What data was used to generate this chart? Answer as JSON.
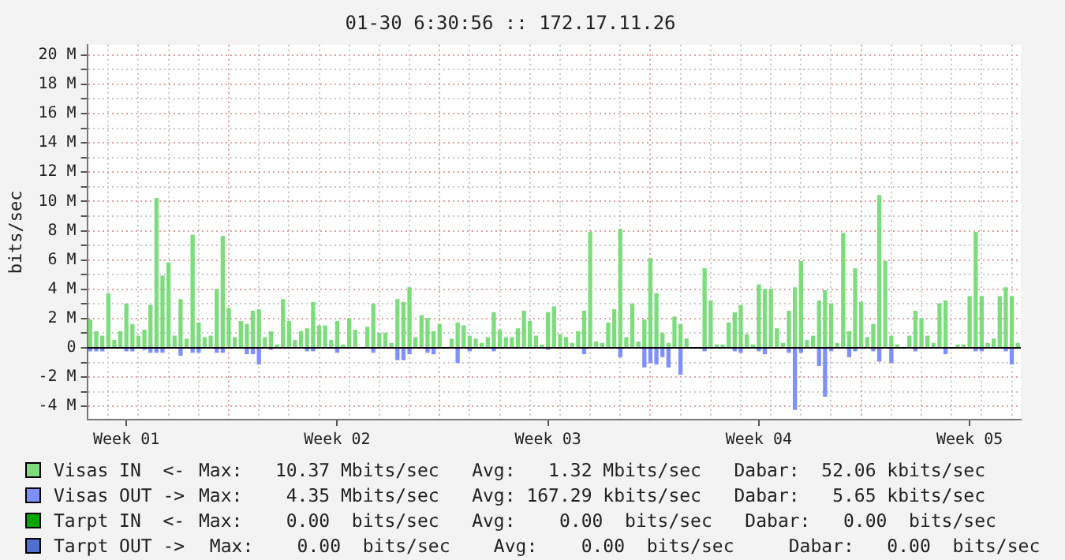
{
  "chart_data": {
    "type": "bar",
    "title": "01-30 6:30:56 :: 172.17.11.26",
    "ylabel": "bits/sec",
    "categories": [
      null,
      null,
      null,
      null,
      null,
      null,
      "Week 01",
      null,
      null,
      null,
      null,
      null,
      null,
      null,
      null,
      null,
      null,
      null,
      null,
      null,
      null,
      null,
      null,
      null,
      null,
      null,
      null,
      null,
      null,
      null,
      null,
      null,
      null,
      null,
      null,
      null,
      null,
      null,
      null,
      null,
      null,
      "Week 02",
      null,
      null,
      null,
      null,
      null,
      null,
      null,
      null,
      null,
      null,
      null,
      null,
      null,
      null,
      null,
      null,
      null,
      null,
      null,
      null,
      null,
      null,
      null,
      null,
      null,
      null,
      null,
      null,
      null,
      null,
      null,
      null,
      null,
      null,
      "Week 03",
      null,
      null,
      null,
      null,
      null,
      null,
      null,
      null,
      null,
      null,
      null,
      null,
      null,
      null,
      null,
      null,
      null,
      null,
      null,
      null,
      null,
      null,
      null,
      null,
      null,
      null,
      null,
      null,
      null,
      null,
      null,
      null,
      null,
      null,
      "Week 04",
      null,
      null,
      null,
      null,
      null,
      null,
      null,
      null,
      null,
      null,
      null,
      null,
      null,
      null,
      null,
      null,
      null,
      null,
      null,
      null,
      null,
      null,
      null,
      null,
      null,
      null,
      null,
      null,
      null,
      null,
      null,
      null,
      null,
      null,
      "Week 05",
      null,
      null,
      null,
      null,
      null,
      null,
      null,
      null
    ],
    "ylim": [
      -4.9,
      20.7
    ],
    "yticks": [
      {
        "value": -4,
        "label": "-4 M"
      },
      {
        "value": -3,
        "label": null
      },
      {
        "value": -2,
        "label": "-2 M"
      },
      {
        "value": -1,
        "label": null
      },
      0,
      {
        "value": 1,
        "label": null
      },
      {
        "value": 2,
        "label": "2 M"
      },
      {
        "value": 3,
        "label": null
      },
      {
        "value": 4,
        "label": "4 M"
      },
      {
        "value": 5,
        "label": null
      },
      {
        "value": 6,
        "label": "6 M"
      },
      {
        "value": 7,
        "label": null
      },
      {
        "value": 8,
        "label": "8 M"
      },
      {
        "value": 9,
        "label": null
      },
      {
        "value": 10,
        "label": "10 M"
      },
      {
        "value": 11,
        "label": null
      },
      {
        "value": 12,
        "label": "12 M"
      },
      {
        "value": 13,
        "label": null
      },
      {
        "value": 14,
        "label": "14 M"
      },
      {
        "value": 15,
        "label": null
      },
      {
        "value": 16,
        "label": "16 M"
      },
      {
        "value": 17,
        "label": null
      },
      {
        "value": 18,
        "label": "18 M"
      },
      {
        "value": 19,
        "label": null
      },
      {
        "value": 20,
        "label": "20 M"
      }
    ],
    "grid": true,
    "legend": "bottom",
    "ref_lines": [
      {
        "axis": "y",
        "value": 0,
        "color": "#000000"
      }
    ],
    "annotations": [
      "Max:   10.37 Mbits/sec   Avg:   1.32 Mbits/sec   Dabar:  52.06 kbits/sec",
      "Max:    4.35 Mbits/sec   Avg: 167.29 kbits/sec   Dabar:   5.65 kbits/sec",
      "Max:    0.00  bits/sec   Avg:    0.00  bits/sec   Dabar:   0.00  bits/sec",
      " Max:    0.00  bits/sec    Avg:    0.00  bits/sec     Dabar:   0.00  bits/sec"
    ],
    "series": [
      {
        "name": "Visas IN  <-",
        "color": "#7ddd7d",
        "values": [
          1.9,
          1.1,
          0.8,
          3.7,
          0.5,
          1.1,
          3.0,
          1.6,
          0.8,
          1.2,
          2.9,
          10.2,
          4.9,
          5.8,
          0.8,
          3.3,
          0.6,
          7.7,
          1.7,
          0.7,
          0.8,
          4.0,
          7.6,
          2.7,
          0.7,
          1.8,
          1.6,
          2.5,
          2.6,
          0.7,
          1.1,
          0.2,
          3.3,
          1.8,
          0.5,
          1.1,
          1.3,
          3.1,
          1.5,
          1.5,
          0.5,
          1.8,
          0.2,
          2.0,
          1.2,
          null,
          1.4,
          3.0,
          1.0,
          1.0,
          0.3,
          3.3,
          3.1,
          4.1,
          0.7,
          2.2,
          2.0,
          1.1,
          1.6,
          null,
          0.6,
          1.7,
          1.5,
          0.8,
          0.6,
          0.3,
          0.7,
          2.4,
          1.2,
          0.7,
          0.7,
          1.3,
          2.5,
          1.8,
          0.8,
          0.2,
          2.4,
          2.8,
          0.9,
          0.7,
          0.3,
          1.1,
          2.5,
          7.9,
          0.4,
          0.3,
          1.7,
          2.6,
          8.1,
          0.7,
          3.0,
          0.4,
          1.9,
          6.1,
          3.7,
          1.0,
          0.3,
          2.1,
          1.6,
          0.6,
          null,
          null,
          5.4,
          3.2,
          0.2,
          0.2,
          1.7,
          2.4,
          2.9,
          0.9,
          0.2,
          4.3,
          4.0,
          4.0,
          1.3,
          0.3,
          2.5,
          4.1,
          5.9,
          0.5,
          0.8,
          3.2,
          3.9,
          3.0,
          0.3,
          7.8,
          1.1,
          5.4,
          3.1,
          0.7,
          1.6,
          10.4,
          5.9,
          0.8,
          0.2,
          null,
          0.8,
          2.5,
          2.0,
          0.8,
          0.3,
          3.0,
          3.2,
          null,
          0.2,
          0.2,
          3.5,
          7.9,
          3.5,
          0.3,
          0.6,
          3.5,
          4.1,
          3.5,
          0.3
        ]
      },
      {
        "name": "Visas OUT ->",
        "color": "#7f8fff",
        "values": [
          -0.2,
          -0.2,
          -0.2,
          null,
          null,
          null,
          -0.2,
          -0.2,
          null,
          -0.1,
          -0.3,
          -0.3,
          -0.3,
          null,
          null,
          -0.5,
          null,
          -0.3,
          -0.3,
          null,
          null,
          -0.3,
          -0.3,
          null,
          null,
          null,
          -0.4,
          -0.4,
          -1.1,
          null,
          -0.1,
          null,
          null,
          null,
          null,
          null,
          -0.2,
          -0.2,
          null,
          null,
          null,
          -0.3,
          null,
          null,
          null,
          null,
          null,
          -0.3,
          null,
          null,
          null,
          -0.8,
          -0.8,
          -0.4,
          null,
          null,
          -0.3,
          -0.4,
          null,
          null,
          null,
          -1.0,
          null,
          -0.2,
          null,
          null,
          null,
          -0.2,
          null,
          null,
          null,
          null,
          null,
          null,
          null,
          null,
          -0.1,
          null,
          null,
          null,
          null,
          null,
          -0.4,
          null,
          null,
          null,
          null,
          null,
          -0.6,
          null,
          null,
          null,
          -1.3,
          -1.0,
          -1.1,
          -0.6,
          -1.3,
          null,
          -1.8,
          null,
          null,
          null,
          -0.2,
          null,
          null,
          null,
          null,
          -0.2,
          -0.3,
          null,
          null,
          -0.2,
          -0.4,
          null,
          null,
          null,
          -0.3,
          -4.2,
          -0.3,
          null,
          null,
          -1.2,
          -3.3,
          -0.2,
          null,
          null,
          -0.6,
          -0.2,
          null,
          null,
          -0.2,
          -0.9,
          null,
          -1.0,
          null,
          null,
          null,
          -0.2,
          null,
          null,
          null,
          null,
          -0.4,
          null,
          null,
          null,
          null,
          -0.2,
          -0.2,
          null,
          null,
          null,
          -0.2,
          -1.1,
          null
        ]
      },
      {
        "name": "Tarpt IN  <-",
        "color": "#00a800",
        "values": [
          0,
          0,
          0,
          0,
          0,
          0,
          0,
          0,
          0,
          0,
          0,
          0,
          0,
          0,
          0,
          0,
          0,
          0,
          0,
          0,
          0,
          0,
          0,
          0,
          0,
          0,
          0,
          0,
          0,
          0,
          0,
          0,
          0,
          0,
          0,
          0,
          0,
          0,
          0,
          0,
          0,
          0,
          0,
          0,
          0,
          0,
          0,
          0,
          0,
          0,
          0,
          0,
          0,
          0,
          0,
          0,
          0,
          0,
          0,
          0,
          0,
          0,
          0,
          0,
          0,
          0,
          0,
          0,
          0,
          0,
          0,
          0,
          0,
          0,
          0,
          0,
          0,
          0,
          0,
          0,
          0,
          0,
          0,
          0,
          0,
          0,
          0,
          0,
          0,
          0,
          0,
          0,
          0,
          0,
          0,
          0,
          0,
          0,
          0,
          0,
          0,
          0,
          0,
          0,
          0,
          0,
          0,
          0,
          0,
          0,
          0,
          0,
          0,
          0,
          0,
          0,
          0,
          0,
          0,
          0,
          0,
          0,
          0,
          0,
          0,
          0,
          0,
          0,
          0,
          0,
          0,
          0,
          0,
          0,
          0,
          0,
          0,
          0,
          0,
          0,
          0,
          0,
          0,
          0,
          0,
          0,
          0,
          0,
          0,
          0,
          0,
          0,
          0,
          0,
          0
        ]
      },
      {
        "name": "Tarpt OUT ->",
        "color": "#5070d0",
        "values": [
          0,
          0,
          0,
          0,
          0,
          0,
          0,
          0,
          0,
          0,
          0,
          0,
          0,
          0,
          0,
          0,
          0,
          0,
          0,
          0,
          0,
          0,
          0,
          0,
          0,
          0,
          0,
          0,
          0,
          0,
          0,
          0,
          0,
          0,
          0,
          0,
          0,
          0,
          0,
          0,
          0,
          0,
          0,
          0,
          0,
          0,
          0,
          0,
          0,
          0,
          0,
          0,
          0,
          0,
          0,
          0,
          0,
          0,
          0,
          0,
          0,
          0,
          0,
          0,
          0,
          0,
          0,
          0,
          0,
          0,
          0,
          0,
          0,
          0,
          0,
          0,
          0,
          0,
          0,
          0,
          0,
          0,
          0,
          0,
          0,
          0,
          0,
          0,
          0,
          0,
          0,
          0,
          0,
          0,
          0,
          0,
          0,
          0,
          0,
          0,
          0,
          0,
          0,
          0,
          0,
          0,
          0,
          0,
          0,
          0,
          0,
          0,
          0,
          0,
          0,
          0,
          0,
          0,
          0,
          0,
          0,
          0,
          0,
          0,
          0,
          0,
          0,
          0,
          0,
          0,
          0,
          0,
          0,
          0,
          0,
          0,
          0,
          0,
          0,
          0,
          0,
          0,
          0,
          0,
          0,
          0,
          0,
          0,
          0,
          0,
          0,
          0,
          0,
          0,
          0
        ]
      }
    ]
  }
}
